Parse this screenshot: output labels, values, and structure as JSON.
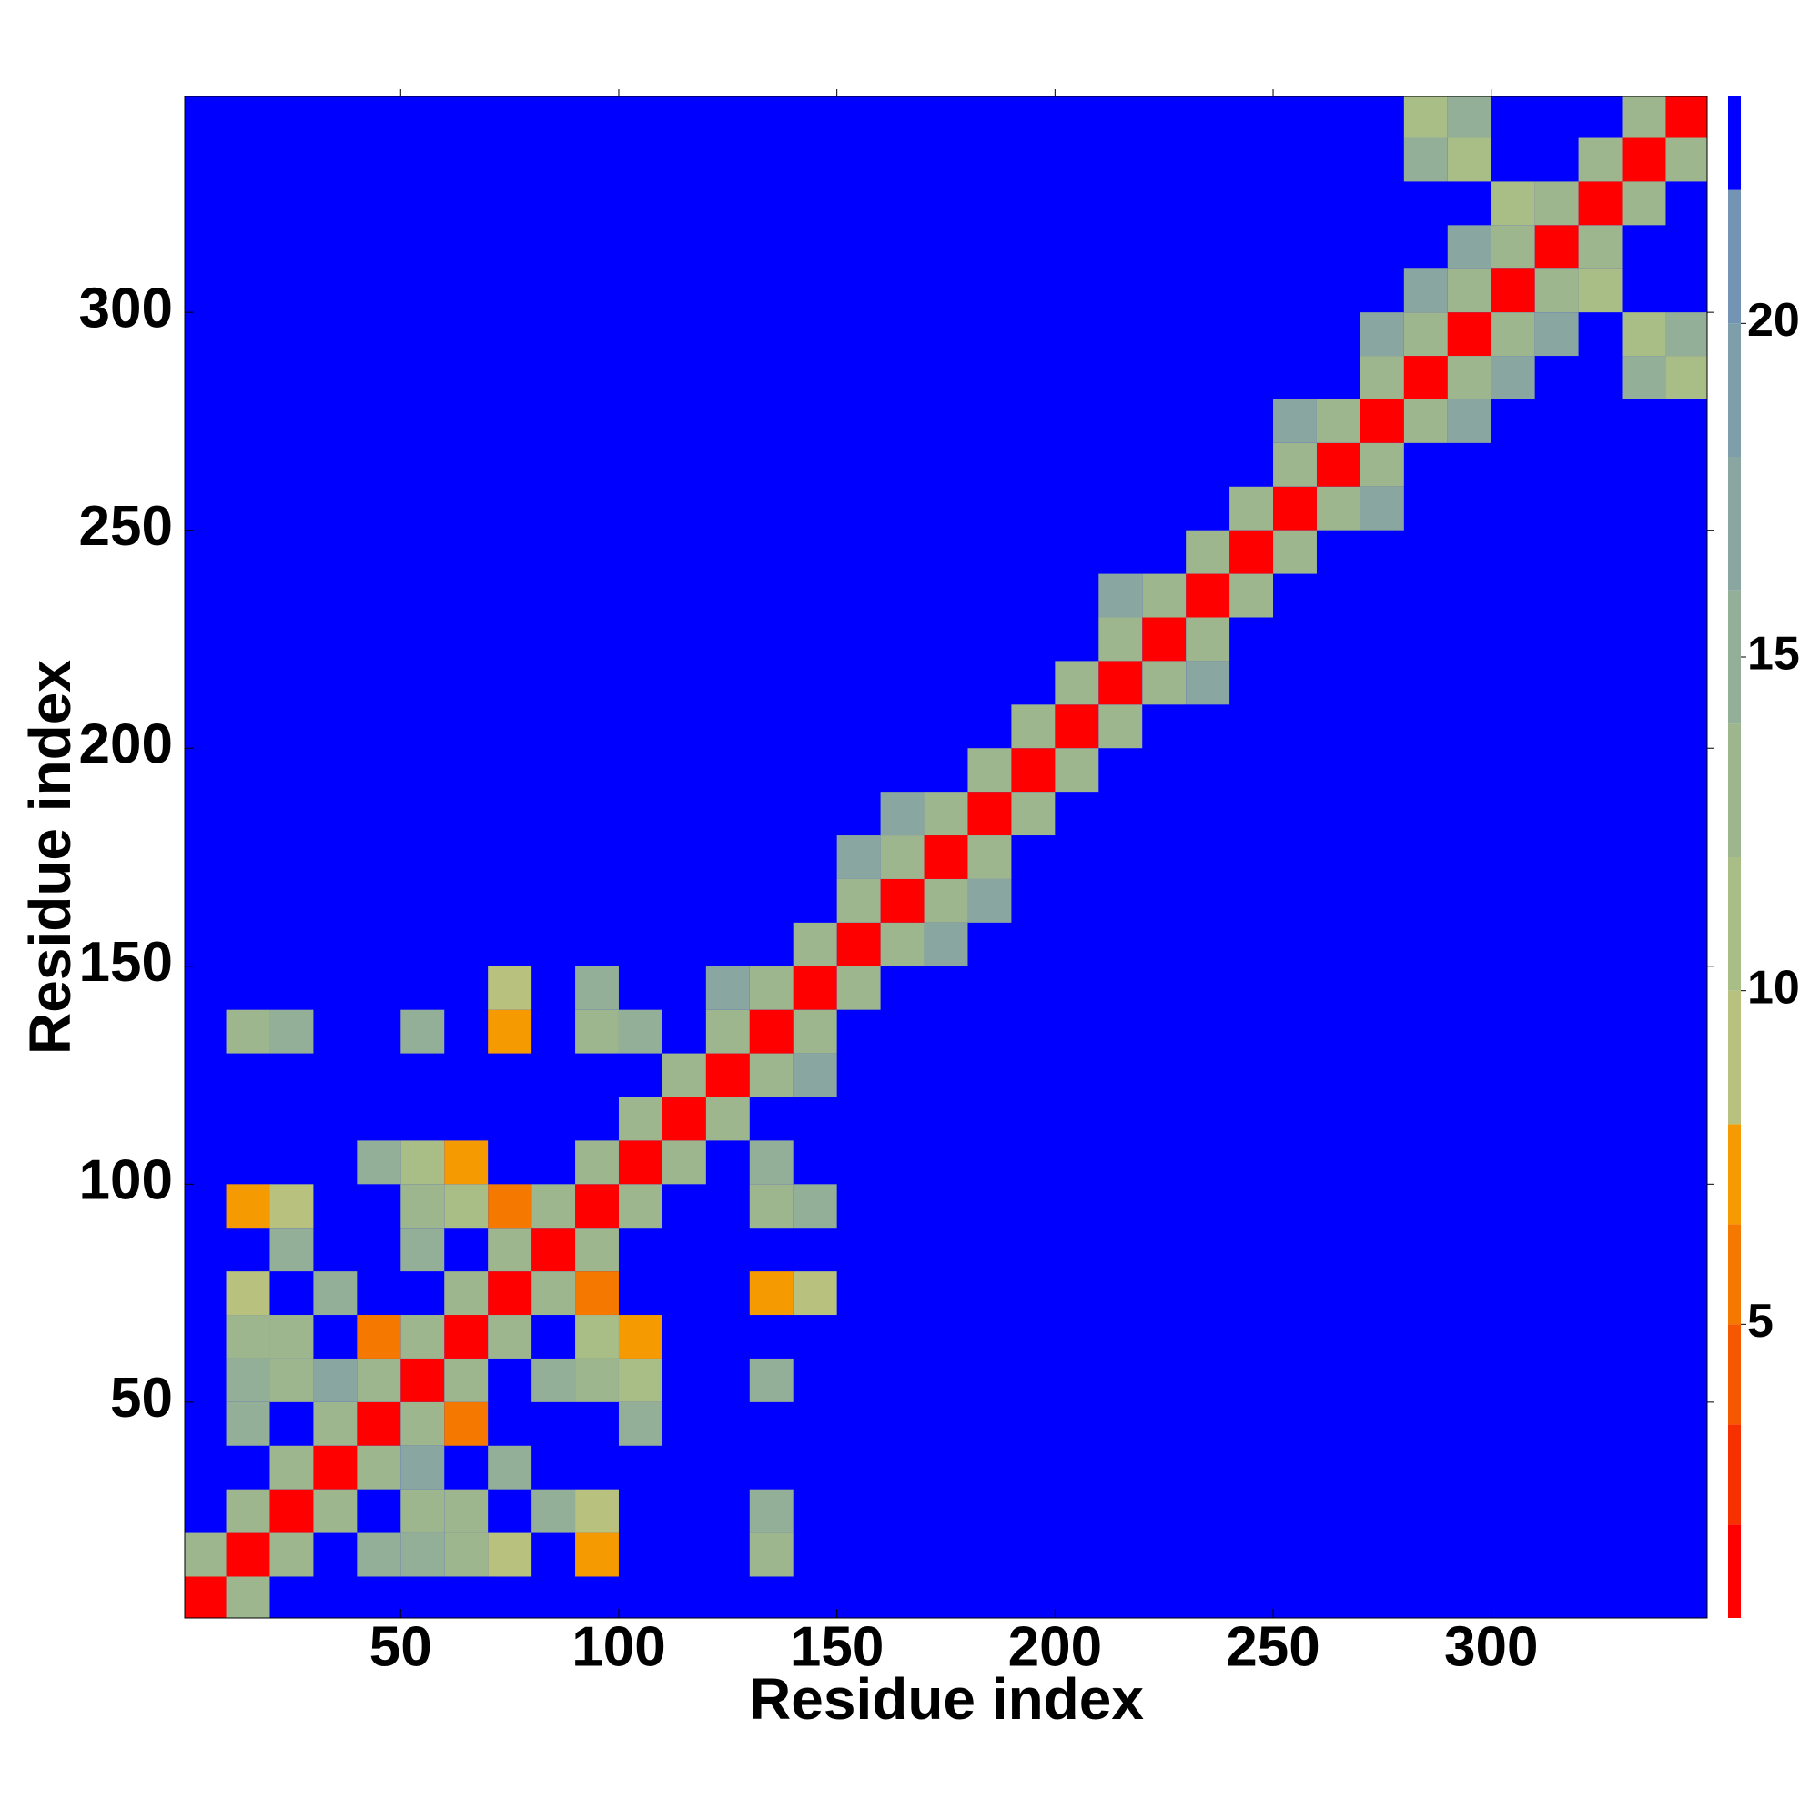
{
  "chart_data": {
    "type": "heatmap",
    "xlabel": "Residue index",
    "ylabel": "Residue index",
    "xlim": [
      0.5,
      349.5
    ],
    "ylim": [
      0.5,
      349.5
    ],
    "xticks": [
      50,
      100,
      150,
      200,
      250,
      300
    ],
    "yticks": [
      50,
      100,
      150,
      200,
      250,
      300
    ],
    "bin": 10,
    "colorbar": {
      "lim": [
        0.6,
        23.4
      ],
      "ticks": [
        5,
        10,
        15,
        20
      ],
      "levels": [
        0.6,
        2,
        3.5,
        5,
        6.5,
        8,
        10,
        12,
        14,
        16,
        18,
        20,
        22,
        23.4
      ],
      "colors": [
        "#ff0000",
        "#f73000",
        "#f55800",
        "#f57800",
        "#f59a00",
        "#b8c27e",
        "#a9bd86",
        "#9db68e",
        "#93af97",
        "#89a7a0",
        "#7e9eaa",
        "#7394b2",
        "#0000ff"
      ]
    },
    "cells": [
      [
        0,
        0,
        2
      ],
      [
        10,
        10,
        2
      ],
      [
        20,
        20,
        2
      ],
      [
        30,
        30,
        2
      ],
      [
        40,
        40,
        2
      ],
      [
        50,
        50,
        2
      ],
      [
        60,
        60,
        2
      ],
      [
        70,
        70,
        2
      ],
      [
        80,
        80,
        2
      ],
      [
        90,
        90,
        2
      ],
      [
        100,
        100,
        2
      ],
      [
        110,
        110,
        2
      ],
      [
        120,
        120,
        2
      ],
      [
        130,
        130,
        2
      ],
      [
        140,
        140,
        2
      ],
      [
        150,
        150,
        2
      ],
      [
        160,
        160,
        2
      ],
      [
        170,
        170,
        2
      ],
      [
        180,
        180,
        2
      ],
      [
        190,
        190,
        2
      ],
      [
        200,
        200,
        2
      ],
      [
        210,
        210,
        2
      ],
      [
        220,
        220,
        2
      ],
      [
        230,
        230,
        2
      ],
      [
        240,
        240,
        2
      ],
      [
        250,
        250,
        2
      ],
      [
        260,
        260,
        2
      ],
      [
        270,
        270,
        2
      ],
      [
        280,
        280,
        2
      ],
      [
        290,
        290,
        2
      ],
      [
        300,
        300,
        2
      ],
      [
        310,
        310,
        2
      ],
      [
        320,
        320,
        2
      ],
      [
        330,
        330,
        2
      ],
      [
        340,
        340,
        2
      ],
      [
        0,
        10,
        13
      ],
      [
        10,
        0,
        13
      ],
      [
        10,
        20,
        13
      ],
      [
        20,
        10,
        13
      ],
      [
        20,
        30,
        13
      ],
      [
        30,
        20,
        13
      ],
      [
        30,
        40,
        13
      ],
      [
        40,
        30,
        13
      ],
      [
        40,
        50,
        13
      ],
      [
        50,
        40,
        13
      ],
      [
        50,
        60,
        13
      ],
      [
        60,
        50,
        13
      ],
      [
        60,
        70,
        13
      ],
      [
        70,
        60,
        13
      ],
      [
        70,
        80,
        13
      ],
      [
        80,
        70,
        13
      ],
      [
        80,
        90,
        13
      ],
      [
        90,
        80,
        13
      ],
      [
        90,
        100,
        13
      ],
      [
        100,
        90,
        13
      ],
      [
        100,
        110,
        13
      ],
      [
        110,
        100,
        13
      ],
      [
        110,
        120,
        13
      ],
      [
        120,
        110,
        13
      ],
      [
        120,
        130,
        13
      ],
      [
        130,
        120,
        13
      ],
      [
        130,
        140,
        13
      ],
      [
        140,
        130,
        13
      ],
      [
        140,
        150,
        13
      ],
      [
        150,
        140,
        13
      ],
      [
        150,
        160,
        13
      ],
      [
        160,
        150,
        13
      ],
      [
        160,
        170,
        13
      ],
      [
        170,
        160,
        13
      ],
      [
        170,
        180,
        13
      ],
      [
        180,
        170,
        13
      ],
      [
        180,
        190,
        13
      ],
      [
        190,
        180,
        13
      ],
      [
        190,
        200,
        13
      ],
      [
        200,
        190,
        13
      ],
      [
        200,
        210,
        13
      ],
      [
        210,
        200,
        13
      ],
      [
        210,
        220,
        13
      ],
      [
        220,
        210,
        13
      ],
      [
        220,
        230,
        13
      ],
      [
        230,
        220,
        13
      ],
      [
        230,
        240,
        13
      ],
      [
        240,
        230,
        13
      ],
      [
        240,
        250,
        13
      ],
      [
        250,
        240,
        13
      ],
      [
        250,
        260,
        13
      ],
      [
        260,
        250,
        13
      ],
      [
        260,
        270,
        13
      ],
      [
        270,
        260,
        13
      ],
      [
        270,
        280,
        13
      ],
      [
        280,
        270,
        13
      ],
      [
        280,
        290,
        13
      ],
      [
        290,
        280,
        13
      ],
      [
        290,
        300,
        13
      ],
      [
        300,
        290,
        13
      ],
      [
        300,
        310,
        13
      ],
      [
        310,
        300,
        13
      ],
      [
        310,
        320,
        13
      ],
      [
        320,
        310,
        13
      ],
      [
        320,
        330,
        13
      ],
      [
        330,
        320,
        13
      ],
      [
        330,
        340,
        13
      ],
      [
        340,
        330,
        13
      ],
      [
        30,
        50,
        17
      ],
      [
        50,
        30,
        17
      ],
      [
        40,
        60,
        6
      ],
      [
        60,
        40,
        6
      ],
      [
        120,
        140,
        17
      ],
      [
        140,
        120,
        17
      ],
      [
        150,
        170,
        17
      ],
      [
        170,
        150,
        17
      ],
      [
        160,
        180,
        17
      ],
      [
        180,
        160,
        17
      ],
      [
        210,
        230,
        17
      ],
      [
        230,
        210,
        17
      ],
      [
        250,
        270,
        17
      ],
      [
        270,
        250,
        17
      ],
      [
        270,
        290,
        17
      ],
      [
        290,
        270,
        17
      ],
      [
        280,
        300,
        17
      ],
      [
        300,
        280,
        17
      ],
      [
        290,
        310,
        17
      ],
      [
        310,
        290,
        17
      ],
      [
        280,
        340,
        11
      ],
      [
        340,
        280,
        11
      ],
      [
        290,
        330,
        11
      ],
      [
        330,
        290,
        11
      ],
      [
        300,
        320,
        11
      ],
      [
        320,
        300,
        11
      ],
      [
        290,
        340,
        15
      ],
      [
        340,
        290,
        15
      ],
      [
        280,
        330,
        15
      ],
      [
        330,
        280,
        15
      ],
      [
        70,
        90,
        6
      ],
      [
        90,
        70,
        6
      ],
      [
        60,
        100,
        8
      ],
      [
        100,
        60,
        8
      ],
      [
        100,
        50,
        12
      ],
      [
        50,
        100,
        12
      ],
      [
        40,
        100,
        15
      ],
      [
        100,
        40,
        15
      ],
      [
        10,
        90,
        7
      ],
      [
        90,
        10,
        7
      ],
      [
        20,
        90,
        9
      ],
      [
        90,
        20,
        9
      ],
      [
        10,
        130,
        14
      ],
      [
        130,
        10,
        14
      ],
      [
        20,
        130,
        15
      ],
      [
        130,
        20,
        15
      ],
      [
        50,
        130,
        15
      ],
      [
        130,
        50,
        15
      ],
      [
        70,
        130,
        7
      ],
      [
        130,
        70,
        7
      ],
      [
        70,
        140,
        9
      ],
      [
        140,
        70,
        9
      ],
      [
        90,
        130,
        14
      ],
      [
        130,
        90,
        14
      ],
      [
        100,
        130,
        16
      ],
      [
        130,
        100,
        16
      ],
      [
        90,
        140,
        15
      ],
      [
        140,
        90,
        15
      ],
      [
        10,
        60,
        14
      ],
      [
        60,
        10,
        14
      ],
      [
        10,
        70,
        9
      ],
      [
        70,
        10,
        9
      ],
      [
        20,
        60,
        13
      ],
      [
        60,
        20,
        13
      ],
      [
        10,
        50,
        15
      ],
      [
        50,
        10,
        15
      ],
      [
        20,
        50,
        14
      ],
      [
        50,
        20,
        14
      ],
      [
        10,
        40,
        15
      ],
      [
        40,
        10,
        15
      ],
      [
        90,
        50,
        13
      ],
      [
        50,
        90,
        13
      ],
      [
        90,
        60,
        11
      ],
      [
        60,
        90,
        11
      ],
      [
        50,
        80,
        15
      ],
      [
        80,
        50,
        15
      ],
      [
        20,
        80,
        16
      ],
      [
        80,
        20,
        16
      ],
      [
        30,
        70,
        16
      ],
      [
        70,
        30,
        16
      ]
    ]
  }
}
